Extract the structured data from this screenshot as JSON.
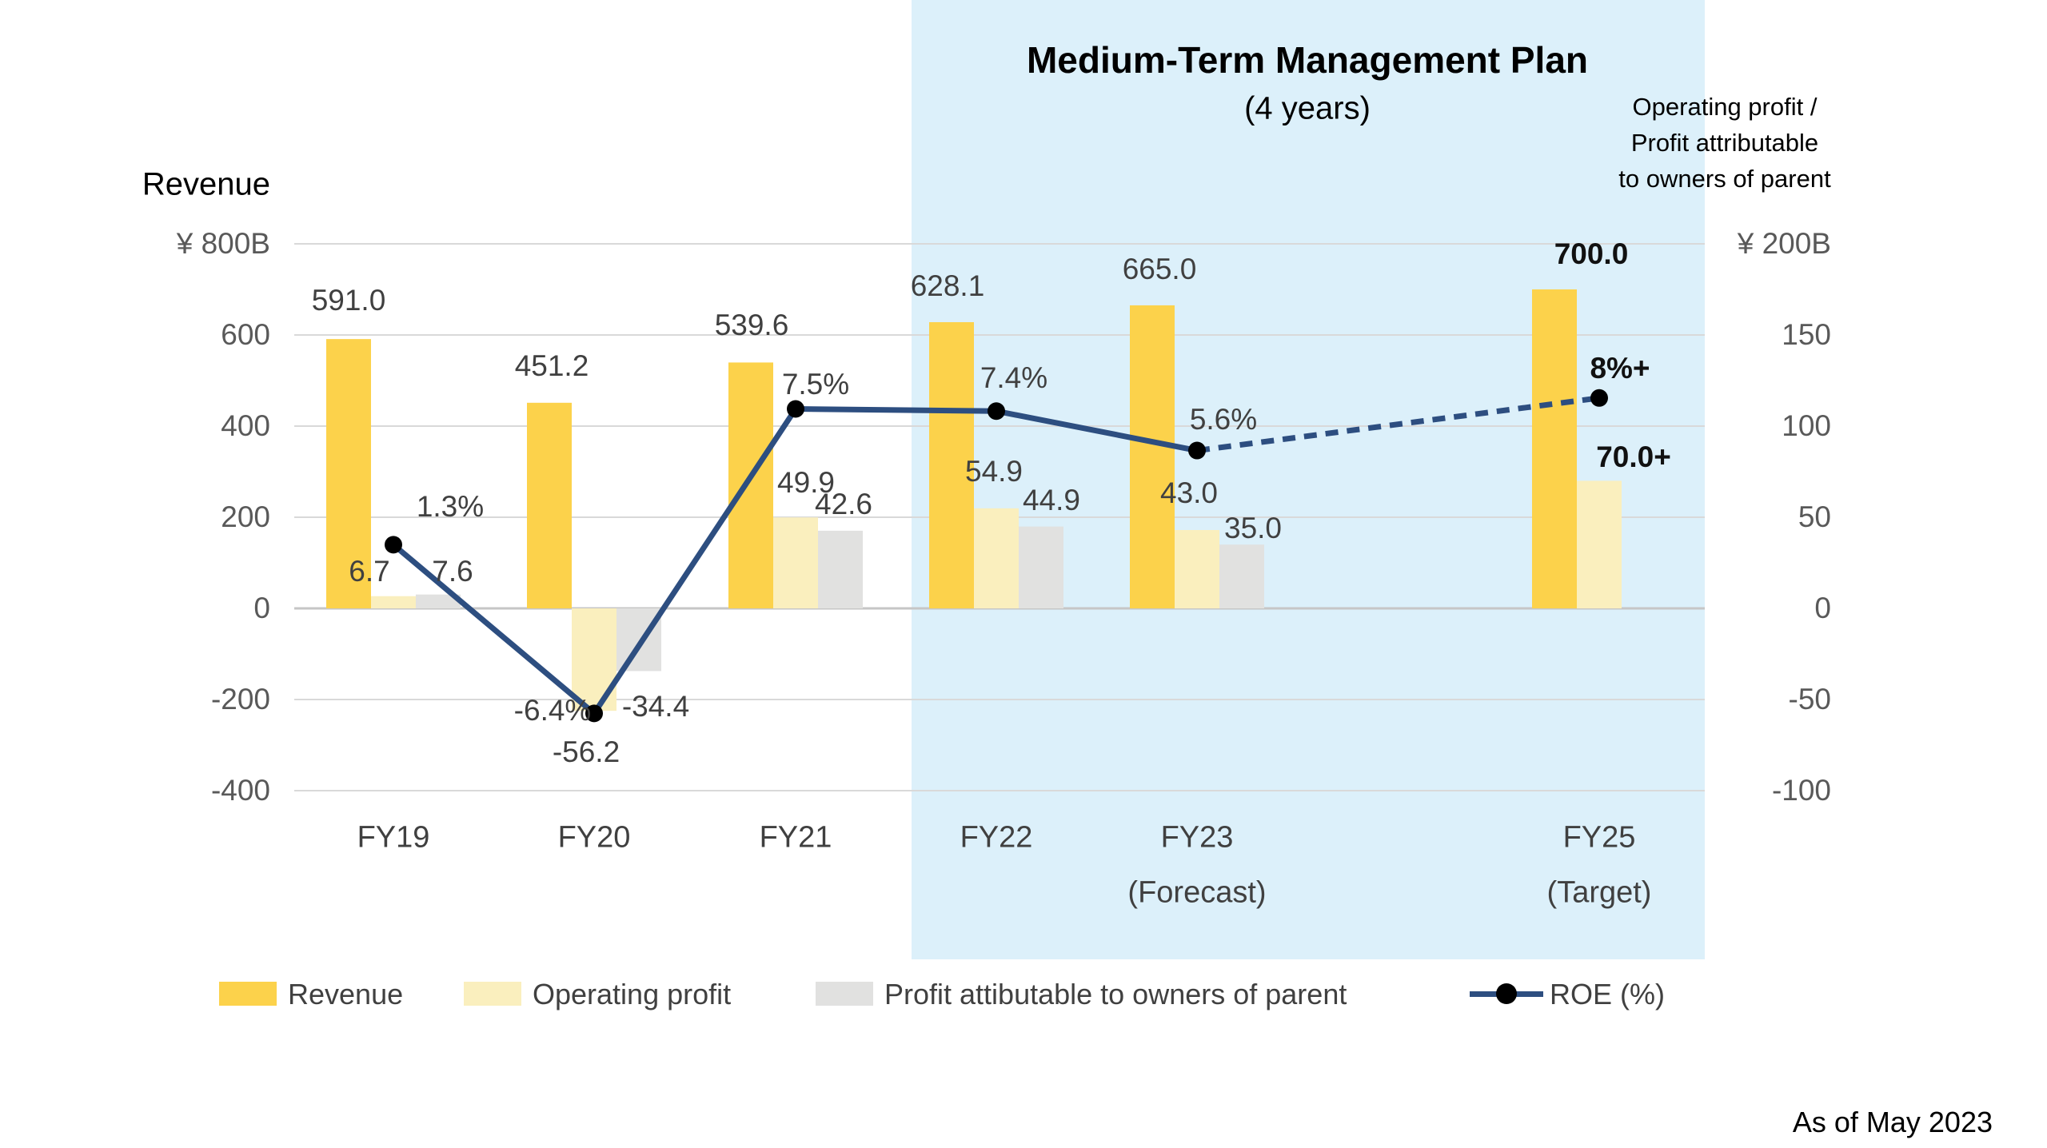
{
  "header": {
    "title": "Medium-Term Management Plan",
    "subtitle": "(4 years)",
    "right_axis_note": [
      "Operating profit /",
      "Profit attributable",
      "to owners of parent"
    ]
  },
  "footer": {
    "as_of": "As of May 2023"
  },
  "legend": {
    "items": [
      {
        "label": "Revenue",
        "swatch": "square",
        "color": "#FCD24B"
      },
      {
        "label": "Operating profit",
        "swatch": "square",
        "color": "#FAEFBE"
      },
      {
        "label": "Profit attibutable to owners of parent",
        "swatch": "square",
        "color": "#E1E1E0"
      },
      {
        "label": "ROE (%)",
        "swatch": "line-marker",
        "color": "#2D4E80"
      }
    ]
  },
  "chart_data": {
    "type": "bar",
    "subtype": "grouped-bars-with-line",
    "title": "Medium-Term Management Plan (4 years)",
    "categories": [
      "FY19",
      "FY20",
      "FY21",
      "FY22",
      "FY23",
      "FY25"
    ],
    "category_sublabels": [
      "",
      "",
      "",
      "",
      "(Forecast)",
      "(Target)"
    ],
    "left_axis": {
      "title": "Revenue",
      "unit": "¥B",
      "ticks": [
        "¥ 800B",
        "600",
        "400",
        "200",
        "0",
        "-200",
        "-400"
      ],
      "tick_values": [
        800,
        600,
        400,
        200,
        0,
        -200,
        -400
      ],
      "range": [
        -400,
        800
      ]
    },
    "right_axis": {
      "title": "Operating profit / Profit attributable to owners of parent",
      "unit": "¥B",
      "ticks": [
        "¥ 200B",
        "150",
        "100",
        "50",
        "0",
        "-50",
        "-100"
      ],
      "tick_values": [
        200,
        150,
        100,
        50,
        0,
        -50,
        -100
      ],
      "range": [
        -100,
        200
      ]
    },
    "highlight": {
      "label": "Medium-Term Management Plan (4 years)",
      "covers": [
        "FY22",
        "FY23",
        "FY25"
      ],
      "color": "#DCF0FA"
    },
    "grid": true,
    "legend_position": "bottom",
    "series": [
      {
        "name": "Revenue",
        "type": "bar",
        "axis": "left",
        "color": "#FCD24B",
        "values": [
          591.0,
          451.2,
          539.6,
          628.1,
          665.0,
          700.0
        ],
        "labels": [
          "591.0",
          "451.2",
          "539.6",
          "628.1",
          "665.0",
          "700.0"
        ]
      },
      {
        "name": "Operating profit",
        "type": "bar",
        "axis": "right",
        "color": "#FAEFBE",
        "values": [
          6.7,
          -56.2,
          49.9,
          54.9,
          43.0,
          70.0
        ],
        "labels": [
          "6.7",
          "-56.2",
          "49.9",
          "54.9",
          "43.0",
          "70.0+"
        ]
      },
      {
        "name": "Profit attibutable to owners of parent",
        "type": "bar",
        "axis": "right",
        "color": "#E1E1E0",
        "values": [
          7.6,
          -34.4,
          42.6,
          44.9,
          35.0,
          null
        ],
        "labels": [
          "7.6",
          "-34.4",
          "42.6",
          "44.9",
          "35.0",
          null
        ]
      },
      {
        "name": "ROE (%)",
        "type": "line",
        "color": "#2D4E80",
        "marker": "circle",
        "marker_color": "#000000",
        "dashed_from_index": 4,
        "values": [
          1.3,
          -6.4,
          7.5,
          7.4,
          5.6,
          8.0
        ],
        "labels": [
          "1.3%",
          "-6.4%",
          "7.5%",
          "7.4%",
          "5.6%",
          "8%+"
        ]
      }
    ]
  }
}
